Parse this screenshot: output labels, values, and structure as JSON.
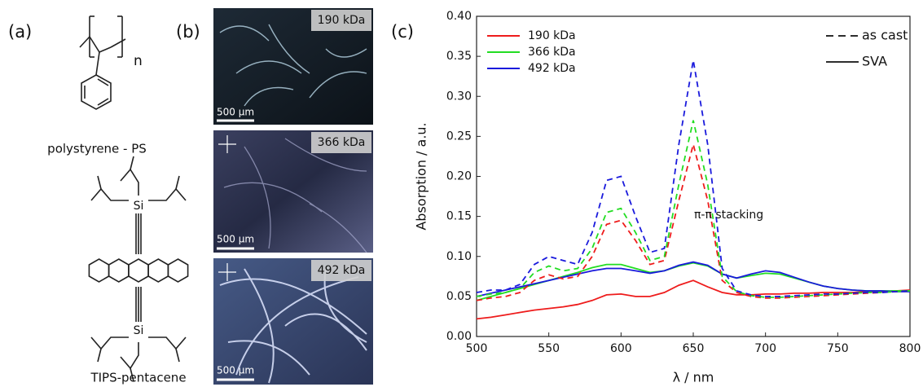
{
  "panel_a": {
    "label": "(a)",
    "structures": [
      {
        "name": "polystyrene - PS",
        "atoms": [
          "n"
        ]
      },
      {
        "name": "TIPS-pentacene",
        "atoms": [
          "Si",
          "Si"
        ]
      }
    ]
  },
  "panel_b": {
    "label": "(b)",
    "images": [
      {
        "label": "190 kDa",
        "scale": "500 µm"
      },
      {
        "label": "366 kDa",
        "scale": "500 µm"
      },
      {
        "label": "492 kDa",
        "scale": "500 µm"
      }
    ]
  },
  "panel_c": {
    "label": "(c)"
  },
  "chart_data": {
    "type": "line",
    "x_label": "λ / nm",
    "y_label": "Absorption / a.u.",
    "xlim": [
      500,
      800
    ],
    "xticks": [
      500,
      550,
      600,
      650,
      700,
      750,
      800
    ],
    "ylim": [
      0,
      0.4
    ],
    "yticks": [
      {
        "value": 0,
        "label": "0.00"
      },
      {
        "value": 0.05,
        "label": "0.05"
      },
      {
        "value": 0.1,
        "label": "0.10"
      },
      {
        "value": 0.15,
        "label": "0.15"
      },
      {
        "value": 0.2,
        "label": "0.20"
      },
      {
        "value": 0.25,
        "label": "0.25"
      },
      {
        "value": 0.3,
        "label": "0.30"
      },
      {
        "value": 0.35,
        "label": "0.35"
      },
      {
        "value": 0.4,
        "label": "0.40"
      }
    ],
    "legend": "upper left",
    "style_legend": [
      {
        "name": "as cast",
        "dashed": true
      },
      {
        "name": "SVA",
        "dashed": false
      }
    ],
    "annotation": "π-π stacking",
    "x": [
      500,
      510,
      520,
      530,
      540,
      550,
      560,
      570,
      580,
      590,
      600,
      610,
      620,
      630,
      640,
      650,
      660,
      670,
      680,
      690,
      700,
      710,
      720,
      730,
      740,
      750,
      760,
      770,
      780,
      790,
      800
    ],
    "series": [
      {
        "name": "190 kDa",
        "color": "#ee1c1c",
        "dashed": false,
        "values": [
          0.022,
          0.024,
          0.027,
          0.03,
          0.033,
          0.035,
          0.037,
          0.04,
          0.045,
          0.052,
          0.053,
          0.05,
          0.05,
          0.055,
          0.064,
          0.07,
          0.062,
          0.055,
          0.052,
          0.052,
          0.053,
          0.053,
          0.054,
          0.054,
          0.055,
          0.055,
          0.055,
          0.056,
          0.056,
          0.057,
          0.058
        ]
      },
      {
        "name": "366 kDa",
        "color": "#22dd22",
        "dashed": false,
        "values": [
          0.045,
          0.05,
          0.055,
          0.06,
          0.065,
          0.07,
          0.075,
          0.08,
          0.086,
          0.09,
          0.09,
          0.085,
          0.08,
          0.082,
          0.088,
          0.092,
          0.088,
          0.078,
          0.073,
          0.076,
          0.079,
          0.078,
          0.073,
          0.068,
          0.063,
          0.06,
          0.058,
          0.057,
          0.057,
          0.057,
          0.057
        ]
      },
      {
        "name": "492 kDa",
        "color": "#1a1adc",
        "dashed": false,
        "values": [
          0.05,
          0.054,
          0.058,
          0.062,
          0.066,
          0.07,
          0.074,
          0.078,
          0.082,
          0.085,
          0.085,
          0.082,
          0.079,
          0.082,
          0.089,
          0.093,
          0.089,
          0.078,
          0.073,
          0.078,
          0.082,
          0.08,
          0.074,
          0.068,
          0.063,
          0.06,
          0.058,
          0.057,
          0.057,
          0.056,
          0.056
        ]
      },
      {
        "color": "#ee1c1c",
        "dashed": true,
        "values": [
          0.045,
          0.048,
          0.05,
          0.055,
          0.07,
          0.077,
          0.072,
          0.075,
          0.1,
          0.14,
          0.145,
          0.12,
          0.09,
          0.095,
          0.17,
          0.24,
          0.17,
          0.07,
          0.055,
          0.05,
          0.048,
          0.048,
          0.049,
          0.05,
          0.051,
          0.052,
          0.053,
          0.054,
          0.055,
          0.056,
          0.057
        ]
      },
      {
        "color": "#22dd22",
        "dashed": true,
        "values": [
          0.05,
          0.053,
          0.055,
          0.06,
          0.08,
          0.088,
          0.082,
          0.085,
          0.11,
          0.155,
          0.16,
          0.13,
          0.095,
          0.1,
          0.19,
          0.27,
          0.19,
          0.075,
          0.056,
          0.051,
          0.049,
          0.049,
          0.05,
          0.051,
          0.052,
          0.053,
          0.054,
          0.055,
          0.055,
          0.056,
          0.057
        ]
      },
      {
        "color": "#1a1adc",
        "dashed": true,
        "values": [
          0.055,
          0.058,
          0.058,
          0.065,
          0.09,
          0.1,
          0.095,
          0.09,
          0.13,
          0.195,
          0.2,
          0.15,
          0.105,
          0.11,
          0.24,
          0.345,
          0.24,
          0.085,
          0.057,
          0.052,
          0.05,
          0.05,
          0.051,
          0.052,
          0.053,
          0.053,
          0.054,
          0.055,
          0.055,
          0.056,
          0.057
        ]
      }
    ]
  }
}
